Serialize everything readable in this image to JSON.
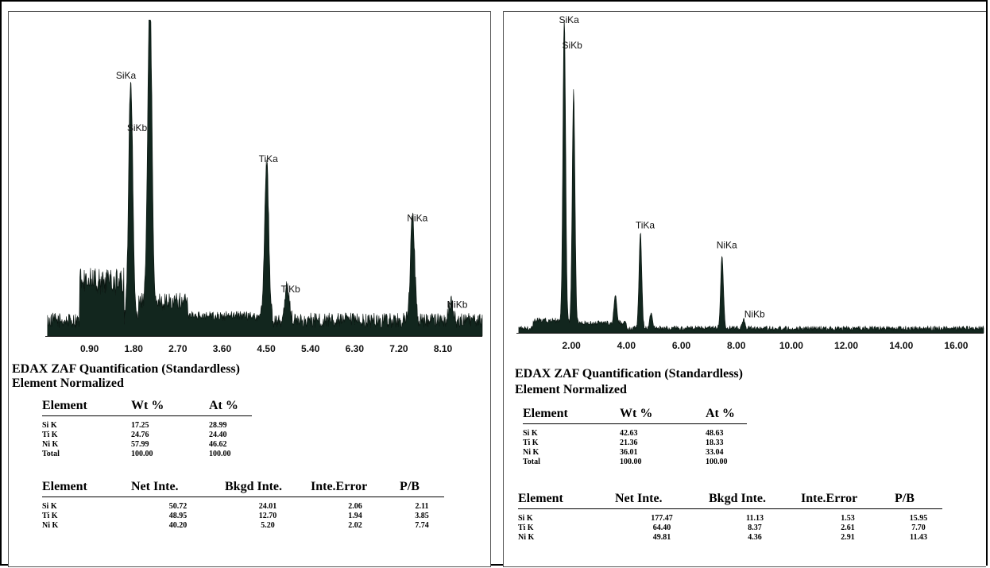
{
  "chart_data": [
    {
      "type": "line",
      "title": "",
      "xlabel": "",
      "ylabel": "",
      "xlim": [
        0.0,
        8.9
      ],
      "x_ticks": [
        "0.90",
        "1.80",
        "2.70",
        "3.60",
        "4.50",
        "5.40",
        "6.30",
        "7.20",
        "8.10"
      ],
      "x_tick_values": [
        0.9,
        1.8,
        2.7,
        3.6,
        4.5,
        5.4,
        6.3,
        7.2,
        8.1
      ],
      "grid": false,
      "background_level": 0.05,
      "continuum": [
        {
          "from": 0.7,
          "to": 1.6,
          "level": 0.22
        },
        {
          "from": 1.9,
          "to": 2.9,
          "level": 0.14
        },
        {
          "from": 2.9,
          "to": 4.5,
          "level": 0.08
        }
      ],
      "peaks": [
        {
          "label": "SiKa",
          "energy": 1.74,
          "height": 0.78
        },
        {
          "label": "SiKb",
          "energy": 2.13,
          "height": 1.0
        },
        {
          "label": "TiKa",
          "energy": 4.51,
          "height": 0.51
        },
        {
          "label": "TiKb",
          "energy": 4.93,
          "height": 0.11
        },
        {
          "label": "NiKa",
          "energy": 7.48,
          "height": 0.34
        },
        {
          "label": "NiKb",
          "energy": 8.26,
          "height": 0.06
        }
      ],
      "peak_labels": [
        {
          "text": "SiKa",
          "energy": 1.74
        },
        {
          "text": "SiKb",
          "energy": 1.74
        },
        {
          "text": "TiKa",
          "energy": 4.51
        },
        {
          "text": "TiKb",
          "energy": 4.93
        },
        {
          "text": "NiKa",
          "energy": 7.48
        },
        {
          "text": "NiKb",
          "energy": 8.26
        }
      ]
    },
    {
      "type": "line",
      "title": "",
      "xlabel": "",
      "ylabel": "",
      "xlim": [
        0.0,
        17.0
      ],
      "x_ticks": [
        "2.00",
        "4.00",
        "6.00",
        "8.00",
        "10.00",
        "12.00",
        "14.00",
        "16.00"
      ],
      "x_tick_values": [
        2,
        4,
        6,
        8,
        10,
        12,
        14,
        16
      ],
      "grid": false,
      "background_level": 0.015,
      "continuum": [
        {
          "from": 0.6,
          "to": 1.6,
          "level": 0.05
        },
        {
          "from": 1.6,
          "to": 4.0,
          "level": 0.04
        }
      ],
      "peaks": [
        {
          "label": "SiKa",
          "energy": 1.74,
          "height": 1.0
        },
        {
          "label": "SiKb",
          "energy": 2.08,
          "height": 0.76
        },
        {
          "label": "",
          "energy": 3.6,
          "height": 0.09
        },
        {
          "label": "TiKa",
          "energy": 4.51,
          "height": 0.31
        },
        {
          "label": "",
          "energy": 4.9,
          "height": 0.05
        },
        {
          "label": "NiKa",
          "energy": 7.48,
          "height": 0.24
        },
        {
          "label": "NiKb",
          "energy": 8.26,
          "height": 0.03
        }
      ],
      "peak_labels": [
        {
          "text": "SiKa",
          "energy": 1.74
        },
        {
          "text": "SiKb",
          "energy": 1.74
        },
        {
          "text": "TiKa",
          "energy": 4.51
        },
        {
          "text": "NiKa",
          "energy": 7.48
        },
        {
          "text": "NiKb",
          "energy": 8.26
        }
      ]
    }
  ],
  "panels": [
    {
      "heading1": "EDAX ZAF Quantification (Standardless)",
      "heading2": "Element Normalized",
      "comp_headers": [
        "Element",
        "Wt %",
        "At %"
      ],
      "comp_rows": [
        [
          "Si K",
          "17.25",
          "28.99"
        ],
        [
          "Ti K",
          "24.76",
          "24.40"
        ],
        [
          "Ni K",
          "57.99",
          "46.62"
        ],
        [
          "Total",
          "100.00",
          "100.00"
        ]
      ],
      "int_headers": [
        "Element",
        "Net Inte.",
        "Bkgd Inte.",
        "Inte.Error",
        "P/B"
      ],
      "int_rows": [
        [
          "Si K",
          "50.72",
          "24.01",
          "2.06",
          "2.11"
        ],
        [
          "Ti K",
          "48.95",
          "12.70",
          "1.94",
          "3.85"
        ],
        [
          "Ni K",
          "40.20",
          "5.20",
          "2.02",
          "7.74"
        ]
      ]
    },
    {
      "heading1": "EDAX ZAF Quantification (Standardless)",
      "heading2": "Element Normalized",
      "comp_headers": [
        "Element",
        "Wt %",
        "At %"
      ],
      "comp_rows": [
        [
          "Si K",
          "42.63",
          "48.63"
        ],
        [
          "Ti K",
          "21.36",
          "18.33"
        ],
        [
          "Ni K",
          "36.01",
          "33.04"
        ],
        [
          "Total",
          "100.00",
          "100.00"
        ]
      ],
      "int_headers": [
        "Element",
        "Net Inte.",
        "Bkgd Inte.",
        "Inte.Error",
        "P/B"
      ],
      "int_rows": [
        [
          "Si K",
          "177.47",
          "11.13",
          "1.53",
          "15.95"
        ],
        [
          "Ti K",
          "64.40",
          "8.37",
          "2.61",
          "7.70"
        ],
        [
          "Ni K",
          "49.81",
          "4.36",
          "2.91",
          "11.43"
        ]
      ]
    }
  ],
  "colors": {
    "spectrum_fill": "#12261e",
    "spectrum_edge": "#0a1510"
  }
}
